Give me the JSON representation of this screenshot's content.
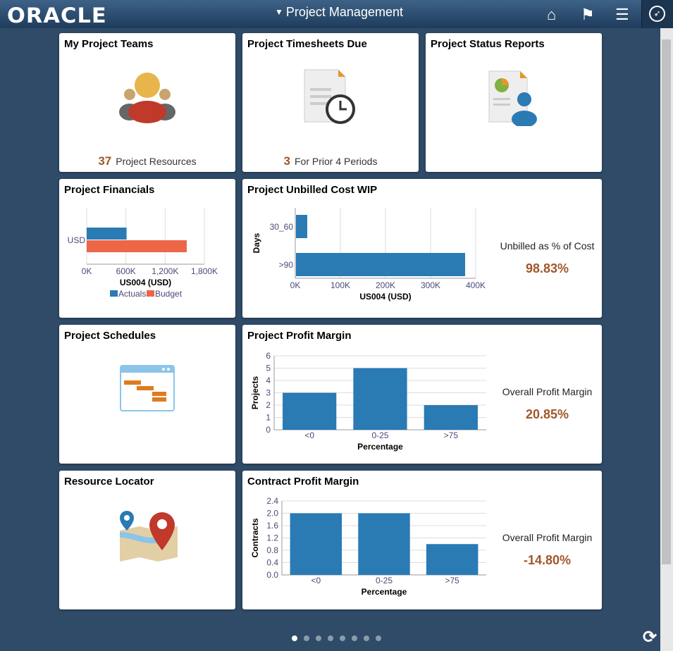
{
  "header": {
    "logo": "ORACLE",
    "title": "Project Management",
    "icons": [
      "home-icon",
      "flag-icon",
      "menu-icon",
      "navbar-compass-icon"
    ]
  },
  "tiles": {
    "teams": {
      "title": "My Project Teams",
      "count": "37",
      "label": "Project Resources"
    },
    "timesheets": {
      "title": "Project Timesheets Due",
      "count": "3",
      "label": "For Prior 4 Periods"
    },
    "status": {
      "title": "Project Status Reports"
    },
    "financials": {
      "title": "Project Financials"
    },
    "unbilled": {
      "title": "Project Unbilled Cost WIP",
      "side_label": "Unbilled as % of Cost",
      "side_value": "98.83%"
    },
    "schedules": {
      "title": "Project Schedules"
    },
    "profit": {
      "title": "Project Profit Margin",
      "side_label": "Overall Profit Margin",
      "side_value": "20.85%"
    },
    "locator": {
      "title": "Resource Locator"
    },
    "contract": {
      "title": "Contract Profit Margin",
      "side_label": "Overall Profit Margin",
      "side_value": "-14.80%"
    }
  },
  "colors": {
    "blue": "#2a7ab4",
    "orange": "#ed6647",
    "accent": "#a0572a"
  },
  "chart_data": [
    {
      "id": "financials",
      "type": "bar",
      "orientation": "horizontal",
      "categories": [
        "USD"
      ],
      "series": [
        {
          "name": "Actuals",
          "values": [
            610000
          ],
          "color": "#2a7ab4"
        },
        {
          "name": "Budget",
          "values": [
            1530000
          ],
          "color": "#ed6647"
        }
      ],
      "xlabel": "US004 (USD)",
      "xlim": [
        0,
        1800000
      ],
      "ticks": [
        "0K",
        "600K",
        "1,200K",
        "1,800K"
      ],
      "legend": "bottom",
      "grid": true
    },
    {
      "id": "unbilled",
      "type": "bar",
      "orientation": "horizontal",
      "categories": [
        "30_60",
        ">90"
      ],
      "values": [
        25000,
        375000
      ],
      "xlabel": "US004 (USD)",
      "ylabel": "Days",
      "xlim": [
        0,
        400000
      ],
      "ticks": [
        "0K",
        "100K",
        "200K",
        "300K",
        "400K"
      ],
      "grid": true
    },
    {
      "id": "profit",
      "type": "bar",
      "categories": [
        "<0",
        "0-25",
        ">75"
      ],
      "values": [
        3,
        5,
        2
      ],
      "xlabel": "Percentage",
      "ylabel": "Projects",
      "ylim": [
        0,
        6
      ],
      "ticks": [
        "0",
        "1",
        "2",
        "3",
        "4",
        "5",
        "6"
      ],
      "grid": true
    },
    {
      "id": "contract",
      "type": "bar",
      "categories": [
        "<0",
        "0-25",
        ">75"
      ],
      "values": [
        2,
        2,
        1
      ],
      "xlabel": "Percentage",
      "ylabel": "Contracts",
      "ylim": [
        0,
        2.4
      ],
      "ticks": [
        "0.0",
        "0.4",
        "0.8",
        "1.2",
        "1.6",
        "2.0",
        "2.4"
      ],
      "grid": true
    }
  ],
  "pager": {
    "pages": 8,
    "current": 1
  }
}
